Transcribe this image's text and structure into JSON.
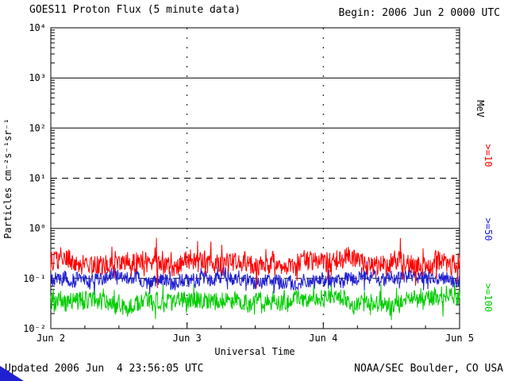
{
  "header": {
    "title": "GOES11 Proton Flux (5 minute data)",
    "begin_label": "Begin: 2006 Jun 2 0000 UTC"
  },
  "footer": {
    "updated_label": "Updated 2006 Jun  4 23:56:05 UTC",
    "source_label": "NOAA/SEC Boulder, CO USA"
  },
  "chart_data": {
    "type": "line",
    "title": "GOES11 Proton Flux (5 minute data)",
    "subtitle": "Begin: 2006 Jun 2 0000 UTC",
    "xlabel": "Universal Time",
    "ylabel": "Particles cm⁻²s⁻¹sr⁻¹",
    "y_scale": "log",
    "y_log_range": [
      -2,
      4
    ],
    "y_ticks": [
      "10⁴",
      "10³",
      "10²",
      "10¹",
      "10⁰",
      "10⁻¹",
      "10⁻²"
    ],
    "x_ticks": [
      "Jun 2",
      "Jun 3",
      "Jun 4",
      "Jun 5"
    ],
    "x_range_days": 3,
    "points_per_day": 288,
    "hlines": [
      {
        "log": 3,
        "style": "solid"
      },
      {
        "log": 2,
        "style": "solid"
      },
      {
        "log": 1,
        "style": "dashed"
      },
      {
        "log": 0,
        "style": "solid"
      },
      {
        "log": -1,
        "style": "dashed"
      }
    ],
    "vlines_dashed_at_days": [
      1,
      2
    ],
    "legend_title": "MeV",
    "legend_position": "right",
    "series": [
      {
        "name": ">=10",
        "color": "#ff0000",
        "approx_mean_flux": 0.2,
        "approx_range": [
          0.1,
          0.55
        ],
        "log_mean": -0.7,
        "log_spread": 0.2,
        "spike_prob": 0.1,
        "spike_amp": 0.35,
        "seed": 42
      },
      {
        "name": ">=50",
        "color": "#2020d0",
        "approx_mean_flux": 0.095,
        "approx_range": [
          0.065,
          0.16
        ],
        "log_mean": -1.02,
        "log_spread": 0.14,
        "spike_prob": 0.08,
        "spike_amp": 0.22,
        "seed": 77
      },
      {
        "name": ">=100",
        "color": "#00cc00",
        "approx_mean_flux": 0.035,
        "approx_range": [
          0.02,
          0.075
        ],
        "log_mean": -1.44,
        "log_spread": 0.18,
        "spike_prob": 0.08,
        "spike_amp": 0.3,
        "seed": 99
      }
    ]
  }
}
